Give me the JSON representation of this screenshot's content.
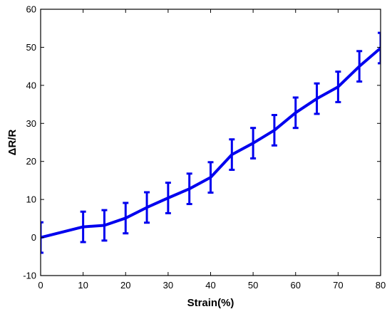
{
  "chart_data": {
    "type": "line",
    "title": "",
    "xlabel": "Strain(%)",
    "ylabel": "ΔR/R",
    "xlim": [
      0,
      80
    ],
    "ylim": [
      -10,
      60
    ],
    "xticks": [
      0,
      10,
      20,
      30,
      40,
      50,
      60,
      70,
      80
    ],
    "yticks": [
      -10,
      0,
      10,
      20,
      30,
      40,
      50,
      60
    ],
    "grid": false,
    "legend": "none",
    "series": [
      {
        "color": "#0000ee",
        "x": [
          0,
          10,
          15,
          20,
          25,
          30,
          35,
          40,
          45,
          50,
          55,
          60,
          65,
          70,
          75,
          80
        ],
        "y": [
          0,
          2.8,
          3.2,
          5.1,
          7.9,
          10.4,
          12.8,
          15.8,
          21.8,
          24.8,
          28.2,
          32.8,
          36.5,
          39.6,
          45.0,
          49.8
        ],
        "error": [
          4.0,
          4.0,
          4.0,
          4.0,
          4.0,
          4.0,
          4.0,
          4.0,
          4.0,
          4.0,
          4.0,
          4.0,
          4.0,
          4.0,
          4.0,
          4.0
        ]
      }
    ]
  }
}
